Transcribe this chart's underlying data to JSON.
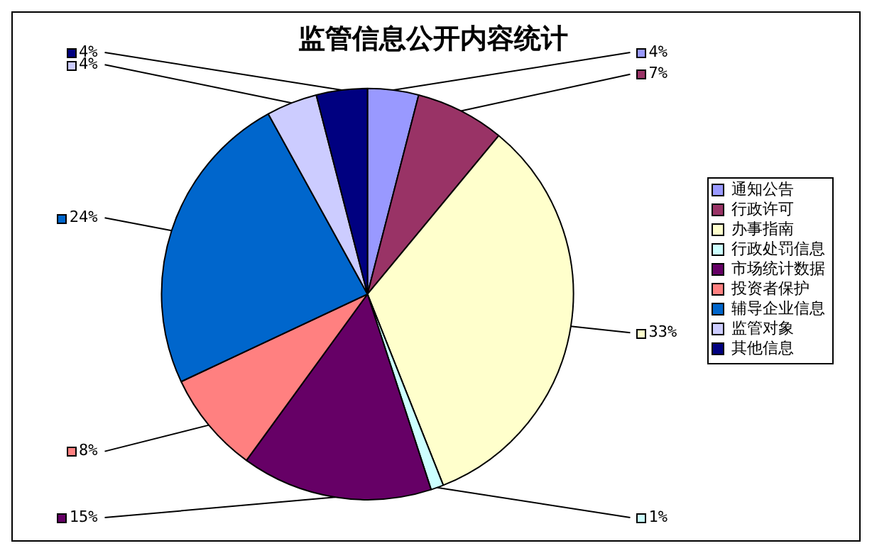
{
  "chart_data": {
    "type": "pie",
    "title": "监管信息公开内容统计",
    "categories": [
      "通知公告",
      "行政许可",
      "办事指南",
      "行政处罚信息",
      "市场统计数据",
      "投资者保护",
      "辅导企业信息",
      "监管对象",
      "其他信息"
    ],
    "values": [
      4,
      7,
      33,
      1,
      15,
      8,
      24,
      4,
      4
    ],
    "colors": [
      "#9999ff",
      "#993366",
      "#ffffcc",
      "#ccffff",
      "#660066",
      "#ff8080",
      "#0066cc",
      "#ccccff",
      "#000080"
    ],
    "value_labels": [
      "4%",
      "7%",
      "33%",
      "1%",
      "15%",
      "8%",
      "24%",
      "4%",
      "4%"
    ],
    "legend": "right"
  }
}
